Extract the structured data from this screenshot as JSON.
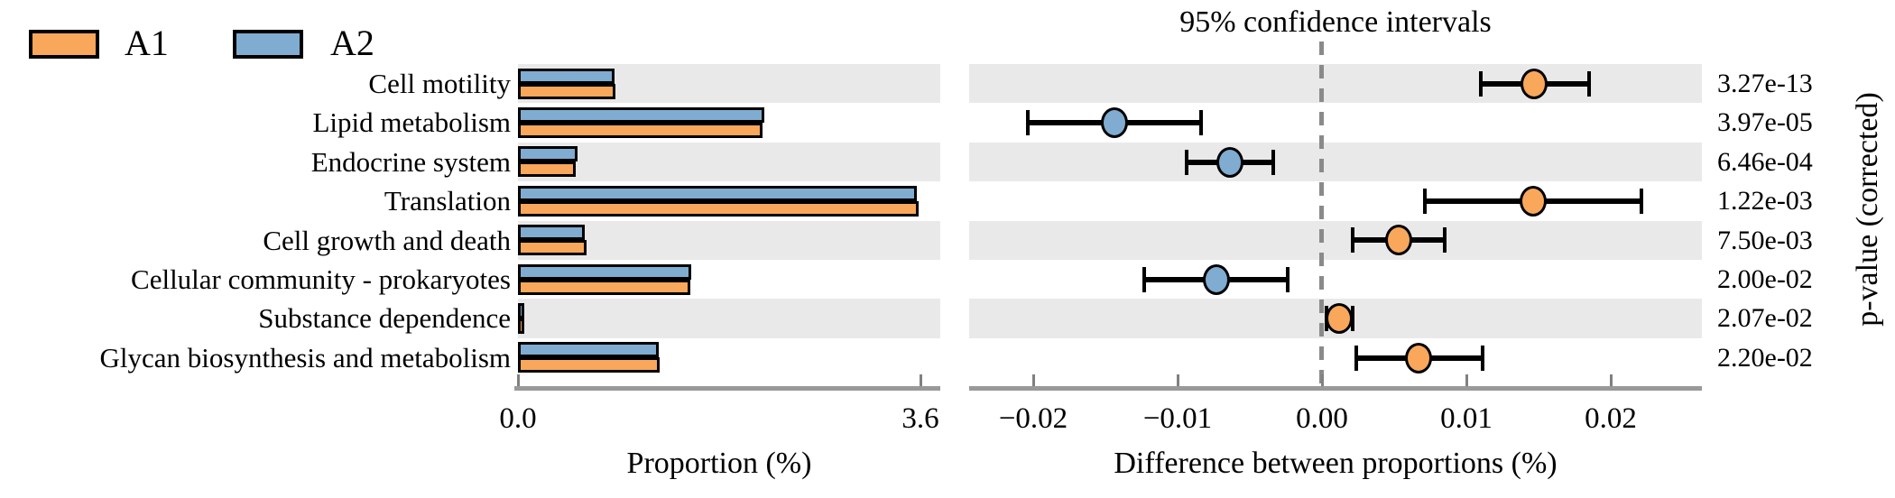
{
  "legend": {
    "items": [
      {
        "label": "A1",
        "color": "#F9A75B"
      },
      {
        "label": "A2",
        "color": "#7FACD0"
      }
    ]
  },
  "right_panel_title": "95% confidence intervals",
  "p_value_axis_label": "p-value (corrected)",
  "colors": {
    "a1_orange": "#F9A75B",
    "a2_blue": "#7FACD0",
    "band_gray": "#E9E9E9",
    "axis_gray": "#999999",
    "zero_line_gray": "#8A8A8A"
  },
  "chart_data": [
    {
      "type": "bar",
      "xlabel": "Proportion (%)",
      "x_ticks": [
        {
          "label": "0.0",
          "value": 0.0
        },
        {
          "label": "3.6",
          "value": 3.6
        }
      ],
      "xlim": [
        0,
        3.78
      ],
      "categories": [
        "Cell motility",
        "Lipid metabolism",
        "Endocrine system",
        "Translation",
        "Cell growth and death",
        "Cellular community - prokaryotes",
        "Substance dependence",
        "Glycan biosynthesis and metabolism"
      ],
      "series": [
        {
          "name": "A1",
          "color": "#F9A75B",
          "values": [
            0.87,
            2.19,
            0.52,
            3.58,
            0.61,
            1.54,
            0.06,
            1.27
          ]
        },
        {
          "name": "A2",
          "color": "#7FACD0",
          "values": [
            0.86,
            2.2,
            0.53,
            3.57,
            0.6,
            1.55,
            0.05,
            1.26
          ]
        }
      ],
      "legend_position": "top-left",
      "grid": false
    },
    {
      "type": "scatter",
      "title": "95% confidence intervals",
      "xlabel": "Difference between proportions (%)",
      "x_ticks": [
        {
          "label": "−0.02",
          "value": -0.02
        },
        {
          "label": "−0.01",
          "value": -0.01
        },
        {
          "label": "0.00",
          "value": 0.0
        },
        {
          "label": "0.01",
          "value": 0.01
        },
        {
          "label": "0.02",
          "value": 0.02
        }
      ],
      "xlim": [
        -0.0244,
        0.0263
      ],
      "zero_reference_line": true,
      "categories": [
        "Cell motility",
        "Lipid metabolism",
        "Endocrine system",
        "Translation",
        "Cell growth and death",
        "Cellular community - prokaryotes",
        "Substance dependence",
        "Glycan biosynthesis and metabolism"
      ],
      "points": [
        {
          "mean": 0.0147,
          "ci_low": 0.011,
          "ci_high": 0.0185,
          "group": "A1"
        },
        {
          "mean": -0.0144,
          "ci_low": -0.0204,
          "ci_high": -0.0084,
          "group": "A2"
        },
        {
          "mean": -0.0064,
          "ci_low": -0.0094,
          "ci_high": -0.0034,
          "group": "A2"
        },
        {
          "mean": 0.0146,
          "ci_low": 0.0071,
          "ci_high": 0.0221,
          "group": "A1"
        },
        {
          "mean": 0.0053,
          "ci_low": 0.0021,
          "ci_high": 0.0085,
          "group": "A1"
        },
        {
          "mean": -0.0073,
          "ci_low": -0.0123,
          "ci_high": -0.0024,
          "group": "A2"
        },
        {
          "mean": 0.0012,
          "ci_low": 0.0003,
          "ci_high": 0.0021,
          "group": "A1"
        },
        {
          "mean": 0.0067,
          "ci_low": 0.0024,
          "ci_high": 0.0111,
          "group": "A1"
        }
      ],
      "p_values": [
        "3.27e-13",
        "3.97e-05",
        "6.46e-04",
        "1.22e-03",
        "7.50e-03",
        "2.00e-02",
        "2.07e-02",
        "2.20e-02"
      ],
      "p_value_axis_label": "p-value (corrected)"
    }
  ]
}
